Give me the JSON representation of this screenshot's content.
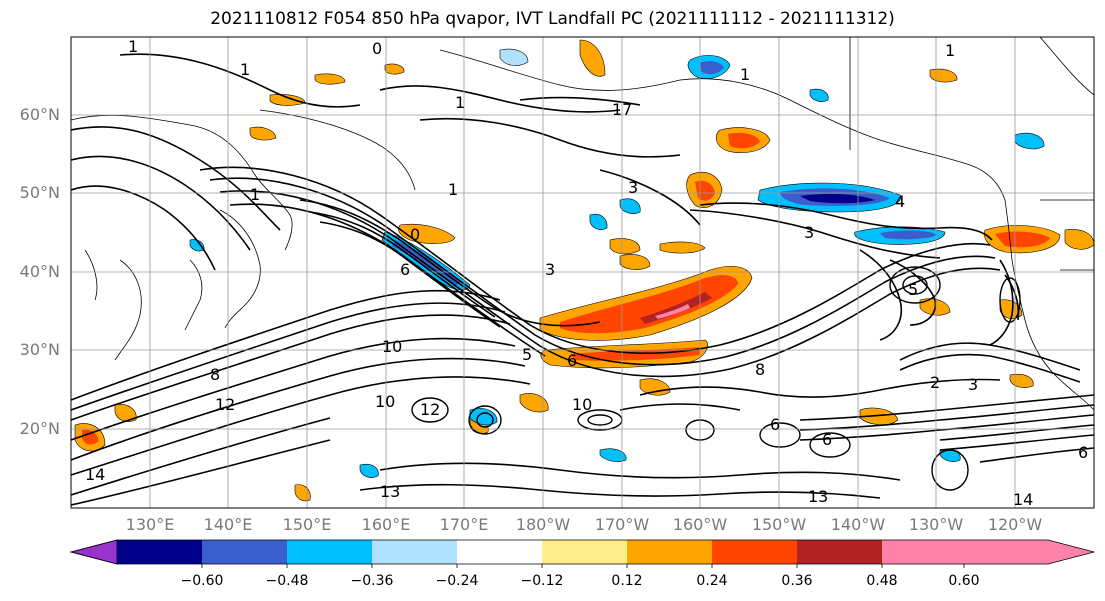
{
  "title": "2021110812 F054 850 hPa qvapor, IVT Landfall PC (2021111112 - 2021111312)",
  "lat_labels": [
    "60°N",
    "50°N",
    "40°N",
    "30°N",
    "20°N"
  ],
  "lon_labels": [
    "130°E",
    "140°E",
    "150°E",
    "160°E",
    "170°E",
    "180°W",
    "170°W",
    "160°W",
    "150°W",
    "140°W",
    "130°W",
    "120°W"
  ],
  "colorbar": {
    "ticks": [
      "−0.60",
      "−0.48",
      "−0.36",
      "−0.24",
      "−0.12",
      "0.12",
      "0.24",
      "0.36",
      "0.48",
      "0.60"
    ],
    "colors": [
      "#9a32cd",
      "#00008b",
      "#3a5fcd",
      "#00bfff",
      "#b0e2ff",
      "#ffffff",
      "#ffec8b",
      "#ffa500",
      "#ff4500",
      "#b22222",
      "#ff82ab"
    ]
  },
  "contour_labels": [
    "1",
    "0",
    "1",
    "1",
    "1",
    "1",
    "1",
    "17",
    "3",
    "1",
    "3",
    "0",
    "4",
    "3",
    "5",
    "6",
    "6",
    "8",
    "8",
    "10",
    "10",
    "12",
    "12",
    "13",
    "10",
    "13",
    "14",
    "14",
    "3",
    "2",
    "5",
    "6",
    "6",
    "6"
  ]
}
